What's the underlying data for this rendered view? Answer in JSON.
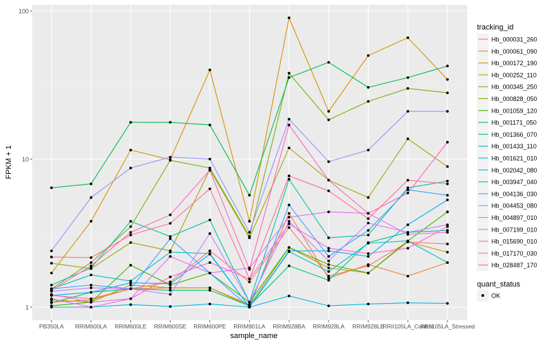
{
  "chart_data": {
    "type": "line",
    "title": "",
    "xlabel": "sample_name",
    "ylabel": "FPKM + 1",
    "yscale": "log10",
    "ylim": [
      0.95,
      105
    ],
    "yticks": [
      1,
      10,
      100
    ],
    "ytick_labels": [
      "1",
      "10",
      "100"
    ],
    "grid": true,
    "legend_placement": "right",
    "categories": [
      "PB350LA",
      "RRIM600LA",
      "RRIM600LE",
      "RRIM600SE",
      "RRIM600PE",
      "RRIM901LA",
      "RRIM928BA",
      "RRIM928LA",
      "RRIM928LE",
      "RRII105LA_Control",
      "RRII105LA_Stressed"
    ],
    "legend_title": "tracking_id",
    "series": [
      {
        "name": "Hb_000031_260",
        "color": "#F8766D",
        "values": [
          1.2,
          1.14,
          1.33,
          1.48,
          2.4,
          1.48,
          3.45,
          1.62,
          1.9,
          2.76,
          2.67
        ]
      },
      {
        "name": "Hb_000061_090",
        "color": "#EA8331",
        "values": [
          1.08,
          1.12,
          1.33,
          1.35,
          1.35,
          1.04,
          4.3,
          1.57,
          1.94,
          1.62,
          2.0
        ]
      },
      {
        "name": "Hb_000172_190",
        "color": "#D89000",
        "values": [
          1.7,
          3.8,
          11.5,
          9.9,
          40,
          3.8,
          90,
          21,
          50,
          66,
          34.5
        ]
      },
      {
        "name": "Hb_000252_110",
        "color": "#C09B00",
        "values": [
          1.12,
          1.08,
          1.41,
          1.35,
          1.35,
          1.02,
          2.53,
          1.84,
          1.7,
          2.76,
          2.35
        ]
      },
      {
        "name": "Hb_000345_250",
        "color": "#A3A500",
        "values": [
          1.98,
          1.82,
          2.73,
          2.4,
          8.5,
          2.94,
          11.9,
          7.2,
          5.5,
          13.7,
          8.9
        ]
      },
      {
        "name": "Hb_000828_050",
        "color": "#7CAE00",
        "values": [
          1.33,
          2.0,
          3.5,
          9.8,
          8.7,
          3.0,
          38,
          18.4,
          24.5,
          30,
          28
        ]
      },
      {
        "name": "Hb_001059_120",
        "color": "#39B600",
        "values": [
          1.02,
          1.08,
          1.92,
          1.41,
          1.7,
          1.08,
          2.53,
          1.94,
          1.7,
          2.8,
          4.4
        ]
      },
      {
        "name": "Hb_001171_050",
        "color": "#00BB4E",
        "values": [
          6.4,
          6.8,
          17.7,
          17.7,
          17,
          5.7,
          35.5,
          45,
          30.5,
          35.5,
          42.5
        ]
      },
      {
        "name": "Hb_001366_070",
        "color": "#00BF7D",
        "values": [
          1.07,
          1.26,
          1.33,
          1.3,
          1.3,
          1.02,
          1.9,
          1.52,
          2.73,
          3.2,
          3.3
        ]
      },
      {
        "name": "Hb_001433_110",
        "color": "#00C1A3",
        "values": [
          1.41,
          1.84,
          3.8,
          3.0,
          3.88,
          1.08,
          7.3,
          2.94,
          3.07,
          6.4,
          7.1
        ]
      },
      {
        "name": "Hb_001621_010",
        "color": "#00BFC4",
        "values": [
          1.33,
          1.65,
          1.5,
          2.35,
          2.3,
          1.0,
          2.37,
          1.74,
          2.7,
          2.8,
          2.0
        ]
      },
      {
        "name": "Hb_002042_080",
        "color": "#00BAE0",
        "values": [
          1.0,
          1.0,
          1.04,
          1.01,
          1.05,
          1.0,
          1.19,
          1.02,
          1.05,
          1.07,
          1.06
        ]
      },
      {
        "name": "Hb_003947_040",
        "color": "#00B0F6",
        "values": [
          1.2,
          1.26,
          1.46,
          1.44,
          2.28,
          1.0,
          2.4,
          2.4,
          2.2,
          3.6,
          5.3
        ]
      },
      {
        "name": "Hb_004136_030",
        "color": "#35A2FF",
        "values": [
          1.33,
          1.41,
          1.33,
          2.9,
          1.7,
          1.0,
          4.9,
          2.2,
          3.3,
          6.2,
          5.7
        ]
      },
      {
        "name": "Hb_004453_080",
        "color": "#9590FF",
        "values": [
          2.4,
          5.5,
          8.7,
          10.3,
          10,
          3.2,
          18.6,
          9.6,
          11.5,
          21,
          21
        ]
      },
      {
        "name": "Hb_004897_010",
        "color": "#C77CFF",
        "values": [
          1.28,
          1.35,
          1.33,
          1.22,
          3.14,
          1.08,
          3.8,
          2.05,
          3.7,
          3.2,
          3.6
        ]
      },
      {
        "name": "Hb_007199_010",
        "color": "#E76BF3",
        "values": [
          1.22,
          1.08,
          1.14,
          2.2,
          1.7,
          1.84,
          4.05,
          4.4,
          4.3,
          3.1,
          3.2
        ]
      },
      {
        "name": "Hb_015690_010",
        "color": "#FA62DB",
        "values": [
          1.14,
          1.0,
          1.14,
          1.6,
          2.0,
          1.55,
          3.65,
          2.5,
          2.3,
          2.5,
          3.5
        ]
      },
      {
        "name": "Hb_017170_030",
        "color": "#FF62BC",
        "values": [
          1.3,
          1.9,
          3.2,
          4.2,
          8.4,
          1.8,
          17,
          7.2,
          4.3,
          5.9,
          13
        ]
      },
      {
        "name": "Hb_028487_170",
        "color": "#FF6C91",
        "values": [
          2.18,
          2.16,
          3.07,
          3.68,
          6.3,
          1.55,
          7.7,
          6.1,
          3.96,
          7.2,
          6.8
        ]
      }
    ],
    "shape_legend_title": "quant_status",
    "shape_legend_items": [
      "OK"
    ]
  }
}
